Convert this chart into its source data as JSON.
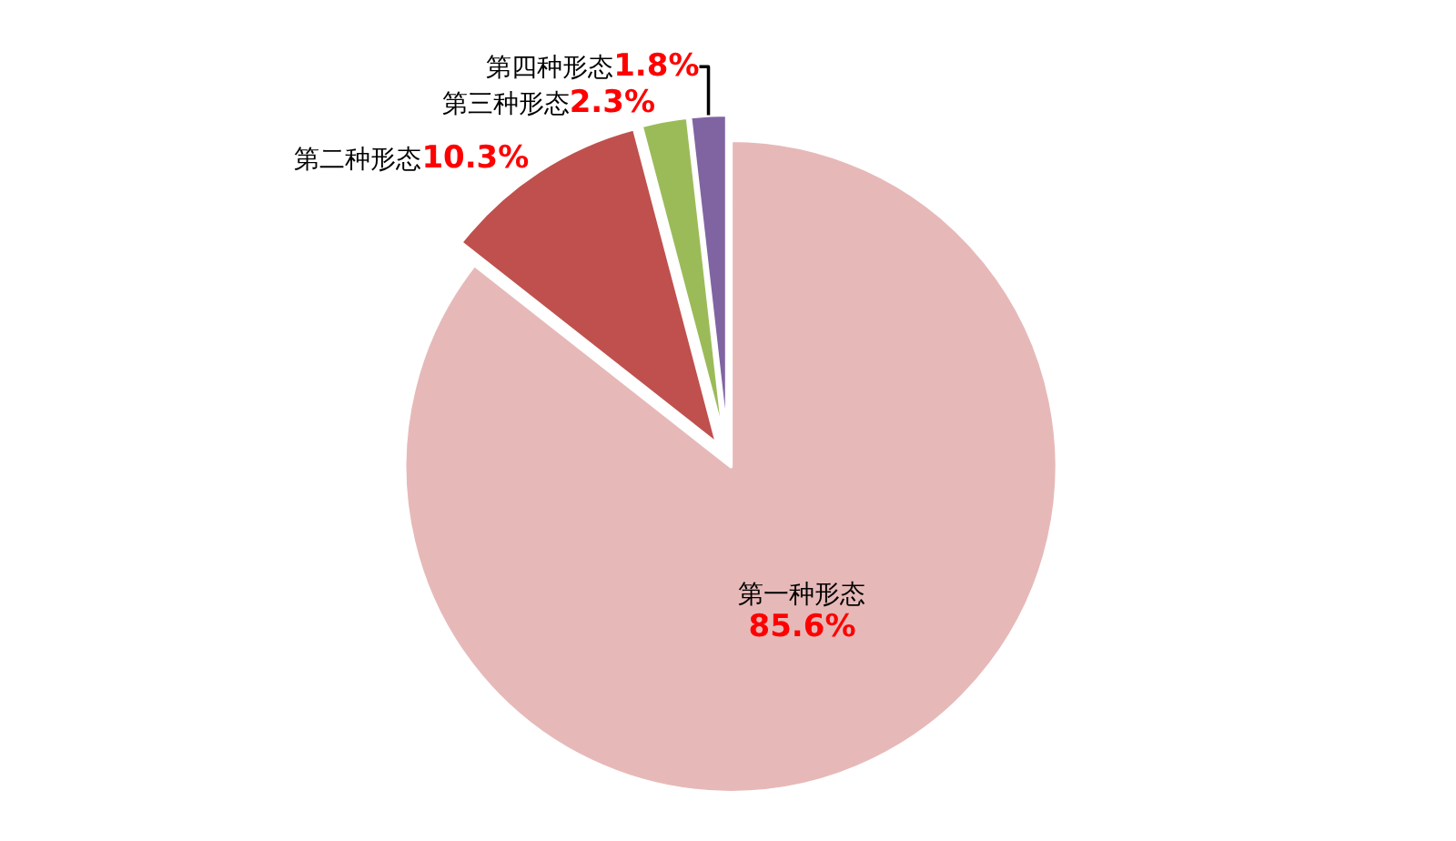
{
  "chart_data": {
    "type": "pie",
    "categories": [
      "第一种形态",
      "第二种形态",
      "第三种形态",
      "第四种形态"
    ],
    "values": [
      85.6,
      10.3,
      2.3,
      1.8
    ],
    "value_labels": [
      "85.6%",
      "10.3%",
      "2.3%",
      "1.8%"
    ],
    "colors": [
      "#e6b9b8",
      "#c0504d",
      "#9bbb59",
      "#8064a2"
    ],
    "legend": false
  }
}
